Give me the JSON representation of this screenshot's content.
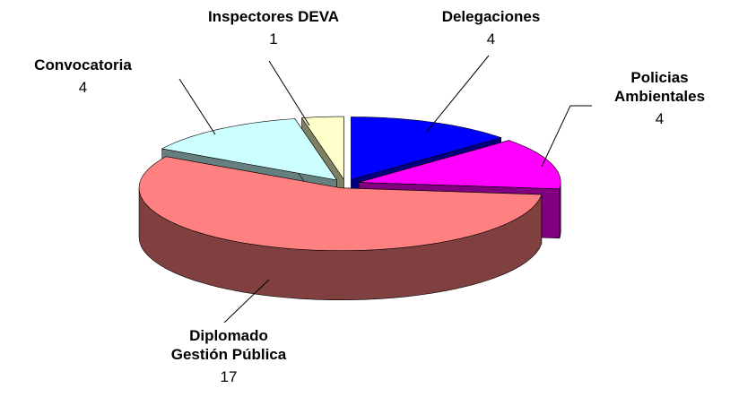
{
  "chart_data": {
    "type": "pie3d",
    "categories": [
      "Delegaciones",
      "Policias Ambientales",
      "Diplomado Gestión Pública",
      "Convocatoria",
      "Inspectores DEVA"
    ],
    "values": [
      4,
      4,
      17,
      4,
      1
    ],
    "colors": [
      "#0000ff",
      "#ff00ff",
      "#ff8080",
      "#ccffff",
      "#ffffcc"
    ]
  }
}
